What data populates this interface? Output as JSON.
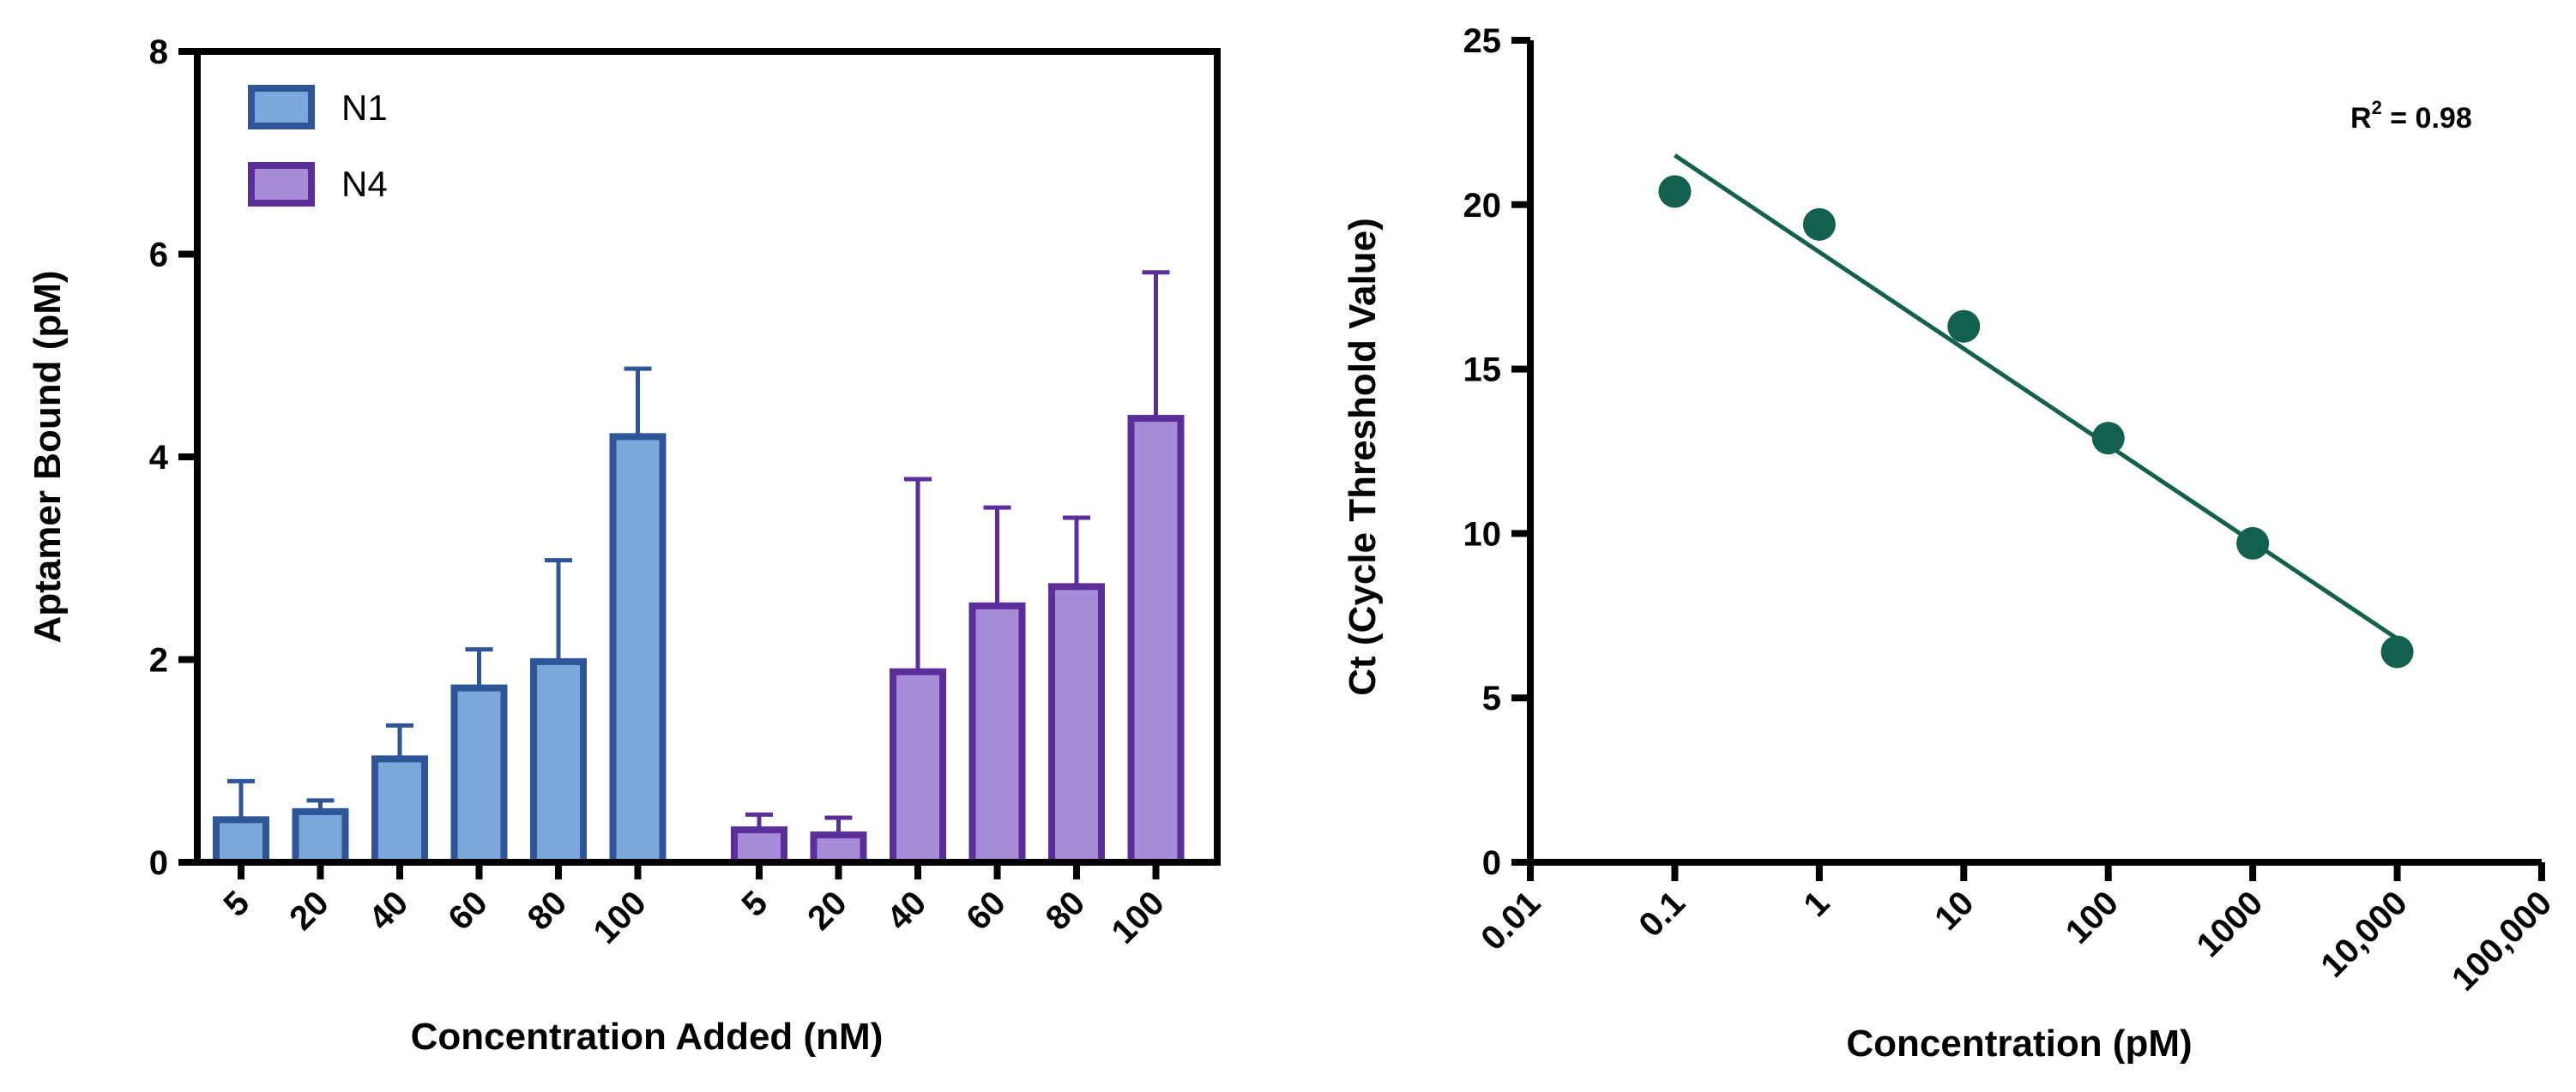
{
  "chart_data": [
    {
      "type": "bar",
      "xlabel": "Concentration Added (nM)",
      "ylabel": "Aptamer Bound (pM)",
      "ylim": [
        0,
        8
      ],
      "yticks": [
        "0",
        "2",
        "4",
        "6",
        "8"
      ],
      "legend_position": "top-left",
      "series": [
        {
          "name": "N1",
          "fill": "#7BA7DB",
          "stroke": "#2E5597",
          "categories": [
            "5",
            "20",
            "40",
            "60",
            "80",
            "100"
          ],
          "values": [
            0.42,
            0.5,
            1.02,
            1.72,
            1.98,
            4.2
          ],
          "errors": [
            0.38,
            0.11,
            0.33,
            0.38,
            1.0,
            0.67
          ]
        },
        {
          "name": "N4",
          "fill": "#A68BD9",
          "stroke": "#5B2E9A",
          "categories": [
            "5",
            "20",
            "40",
            "60",
            "80",
            "100"
          ],
          "values": [
            0.32,
            0.27,
            1.88,
            2.53,
            2.72,
            4.38
          ],
          "errors": [
            0.15,
            0.17,
            1.9,
            0.97,
            0.68,
            1.44
          ]
        }
      ]
    },
    {
      "type": "scatter",
      "xlabel": "Concentration (pM)",
      "ylabel": "Ct (Cycle Threshold Value)",
      "xscale": "log",
      "xlim": [
        0.01,
        100000
      ],
      "xticks": [
        {
          "value": 0.01,
          "label": "0.01"
        },
        {
          "value": 0.1,
          "label": "0.1"
        },
        {
          "value": 1,
          "label": "1"
        },
        {
          "value": 10,
          "label": "10"
        },
        {
          "value": 100,
          "label": "100"
        },
        {
          "value": 1000,
          "label": "1000"
        },
        {
          "value": 10000,
          "label": "10,000"
        },
        {
          "value": 100000,
          "label": "100,000"
        }
      ],
      "ylim": [
        0,
        25
      ],
      "yticks": [
        "0",
        "5",
        "10",
        "15",
        "20",
        "25"
      ],
      "point_color": "#14604F",
      "points": [
        {
          "x": 0.1,
          "y": 20.4
        },
        {
          "x": 1,
          "y": 19.4
        },
        {
          "x": 10,
          "y": 16.3
        },
        {
          "x": 100,
          "y": 12.9
        },
        {
          "x": 1000,
          "y": 9.7
        },
        {
          "x": 10000,
          "y": 6.4
        }
      ],
      "fit": {
        "x1": 0.1,
        "y1": 21.5,
        "x2": 10000,
        "y2": 6.8
      },
      "annotation": {
        "base": "R",
        "sup": "2",
        "rest": " = 0.98"
      }
    }
  ]
}
